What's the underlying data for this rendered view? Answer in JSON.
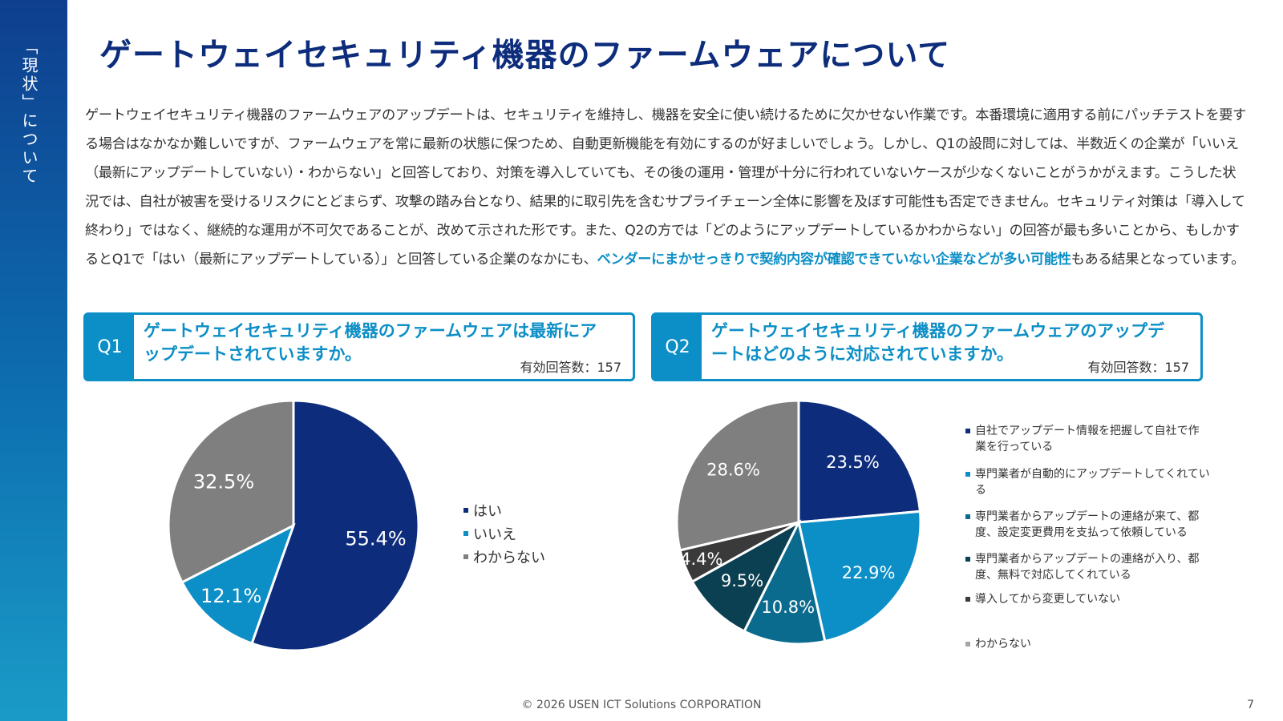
{
  "sidebar": {
    "label": "「現状」について"
  },
  "title": "ゲートウェイセキュリティ機器のファームウェアについて",
  "body": {
    "text_before": "ゲートウェイセキュリティ機器のファームウェアのアップデートは、セキュリティを維持し、機器を安全に使い続けるために欠かせない作業です。本番環境に適用する前にパッチテストを要する場合はなかなか難しいですが、ファームウェアを常に最新の状態に保つため、自動更新機能を有効にするのが好ましいでしょう。しかし、Q1の設問に対しては、半数近くの企業が「いいえ（最新にアップデートしていない）・わからない」と回答しており、対策を導入していても、その後の運用・管理が十分に行われていないケースが少なくないことがうかがえます。こうした状況では、自社が被害を受けるリスクにとどまらず、攻撃の踏み台となり、結果的に取引先を含むサプライチェーン全体に影響を及ぼす可能性も否定できません。セキュリティ対策は「導入して終わり」ではなく、継続的な運用が不可欠であることが、改めて示された形です。また、Q2の方では「どのようにアップデートしているかわからない」の回答が最も多いことから、もしかするとQ1で「はい（最新にアップデートしている）」と回答している企業のなかにも、",
    "highlight": "ベンダーにまかせっきりで契約内容が確認できていない企業などが多い可能性",
    "text_after": "もある結果となっています。"
  },
  "q1": {
    "tag": "Q1",
    "question": "ゲートウェイセキュリティ機器のファームウェアは最新にアップデートされていますか。",
    "count": "有効回答数：157"
  },
  "q2": {
    "tag": "Q2",
    "question": "ゲートウェイセキュリティ機器のファームウェアのアップデートはどのように対応されていますか。",
    "count": "有効回答数：157"
  },
  "chart_data": [
    {
      "type": "pie",
      "categories": [
        "はい",
        "いいえ",
        "わからない"
      ],
      "values": [
        55.4,
        12.1,
        32.5
      ],
      "labels": [
        "55.4%",
        "12.1%",
        "32.5%"
      ],
      "colors": [
        "#0d2d7c",
        "#0c8fc6",
        "#7f7f7f"
      ],
      "legend": "right"
    },
    {
      "type": "pie",
      "categories": [
        "自社でアップデート情報を把握して自社で作業を行っている",
        "専門業者が自動的にアップデートしてくれている",
        "専門業者からアップデートの連絡が来て、都度、設定変更費用を支払って依頼している",
        "専門業者からアップデートの連絡が入り、都度、無料で対応してくれている",
        "導入してから変更していない",
        "わからない"
      ],
      "values": [
        23.5,
        22.9,
        10.8,
        9.5,
        4.4,
        28.6
      ],
      "labels": [
        "23.5%",
        "22.9%",
        "10.8%",
        "9.5%",
        "4.4%",
        "28.6%"
      ],
      "colors": [
        "#0d2d7c",
        "#0c8fc6",
        "#0b6b8e",
        "#0b3f52",
        "#3a3a3a",
        "#7f7f7f"
      ],
      "legend": "right"
    }
  ],
  "legend1": [
    "はい",
    "いいえ",
    "わからない"
  ],
  "legend2": [
    "自社でアップデート情報を把握して自社で作業を行っている",
    "専門業者が自動的にアップデートしてくれている",
    "専門業者からアップデートの連絡が来て、都度、設定変更費用を支払って依頼している",
    "専門業者からアップデートの連絡が入り、都度、無料で対応してくれている",
    "導入してから変更していない",
    "わからない"
  ],
  "footer": "© 2026 USEN ICT Solutions CORPORATION",
  "page_number": "7"
}
